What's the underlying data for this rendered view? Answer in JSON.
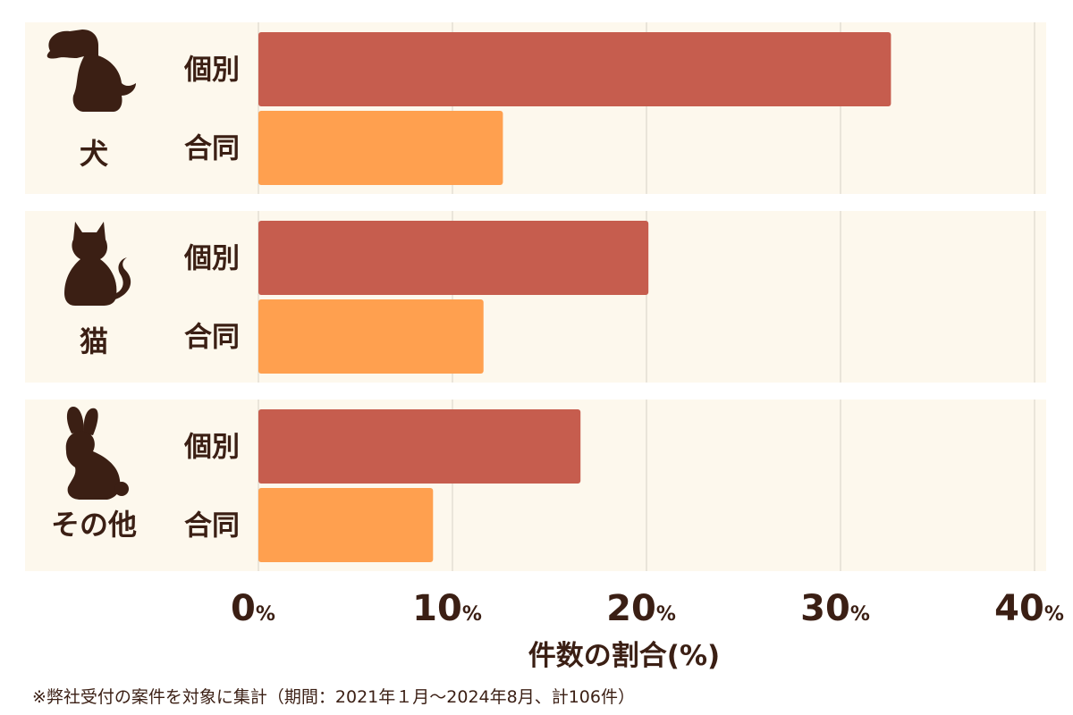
{
  "chart_data": {
    "type": "bar",
    "orientation": "horizontal",
    "groups": [
      {
        "name": "犬",
        "icon": "dog-icon"
      },
      {
        "name": "猫",
        "icon": "cat-icon"
      },
      {
        "name": "その他",
        "icon": "rabbit-icon"
      }
    ],
    "series": [
      {
        "name": "個別",
        "color": "#c65d4e",
        "values": [
          32.6,
          20.1,
          16.6
        ]
      },
      {
        "name": "合同",
        "color": "#ffa04f",
        "values": [
          12.6,
          11.6,
          9.0
        ]
      }
    ],
    "xticks": [
      0,
      10,
      20,
      30,
      40
    ],
    "tick_unit": "%",
    "xlim": [
      0,
      40
    ],
    "xlabel": "件数の割合(%)",
    "grid": true,
    "panel_color": "#fdf8ed"
  },
  "footnote": "※弊社受付の案件を対象に集計（期間：2021年１月〜2024年8月、計106件）"
}
